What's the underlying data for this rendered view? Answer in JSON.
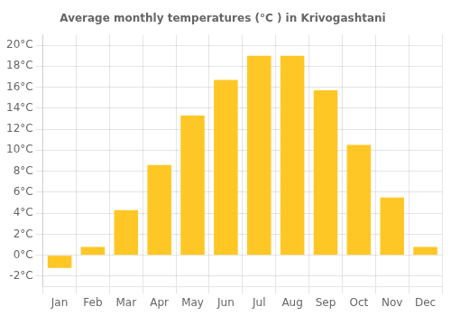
{
  "chart_data": {
    "type": "bar",
    "title": "Average monthly temperatures (°C ) in Krivogashtani",
    "categories": [
      "Jan",
      "Feb",
      "Mar",
      "Apr",
      "May",
      "Jun",
      "Jul",
      "Aug",
      "Sep",
      "Oct",
      "Nov",
      "Dec"
    ],
    "values": [
      -1.2,
      0.8,
      4.3,
      8.6,
      13.3,
      16.7,
      19.0,
      19.0,
      15.7,
      10.5,
      5.5,
      0.8
    ],
    "color": "#FFC726",
    "ylim": [
      -3,
      21
    ],
    "yticks": [
      {
        "value": -2,
        "label": "-2°C"
      },
      {
        "value": 0,
        "label": "0°C"
      },
      {
        "value": 2,
        "label": "2°C"
      },
      {
        "value": 4,
        "label": "4°C"
      },
      {
        "value": 6,
        "label": "6°C"
      },
      {
        "value": 8,
        "label": "8°C"
      },
      {
        "value": 10,
        "label": "10°C"
      },
      {
        "value": 12,
        "label": "12°C"
      },
      {
        "value": 14,
        "label": "14°C"
      },
      {
        "value": 16,
        "label": "16°C"
      },
      {
        "value": 18,
        "label": "18°C"
      },
      {
        "value": 20,
        "label": "20°C"
      }
    ],
    "grid": true
  }
}
